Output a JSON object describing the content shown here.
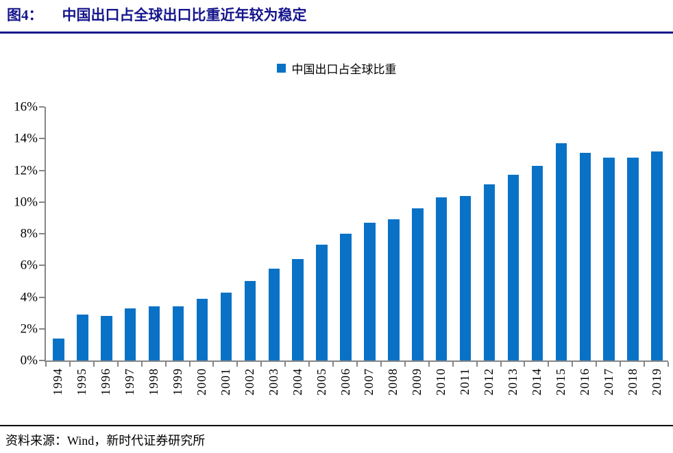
{
  "page": {
    "title_prefix": "图4：",
    "title_text": "中国出口占全球出口比重近年较为稳定",
    "source_text": "资料来源：Wind，新时代证券研究所"
  },
  "legend": {
    "label": "中国出口占全球比重"
  },
  "colors": {
    "bar": "#0A72C6",
    "axis": "#858585",
    "title": "#14148C",
    "title_rule": "#14148C",
    "source_rule": "#000000"
  },
  "chart_data": {
    "type": "bar",
    "title": "中国出口占全球比重",
    "categories": [
      "1994",
      "1995",
      "1996",
      "1997",
      "1998",
      "1999",
      "2000",
      "2001",
      "2002",
      "2003",
      "2004",
      "2005",
      "2006",
      "2007",
      "2008",
      "2009",
      "2010",
      "2011",
      "2012",
      "2013",
      "2014",
      "2015",
      "2016",
      "2017",
      "2018",
      "2019"
    ],
    "values": [
      1.4,
      2.9,
      2.8,
      3.3,
      3.4,
      3.4,
      3.9,
      4.3,
      5.0,
      5.8,
      6.4,
      7.3,
      8.0,
      8.7,
      8.9,
      9.6,
      10.3,
      10.4,
      11.1,
      11.7,
      12.3,
      13.7,
      13.1,
      12.8,
      12.8,
      13.2
    ],
    "unit": "%",
    "xlabel": "",
    "ylabel": "",
    "ylim": [
      0,
      16
    ],
    "ytick_step": 2,
    "ytick_labels": [
      "0%",
      "2%",
      "4%",
      "6%",
      "8%",
      "10%",
      "12%",
      "14%",
      "16%"
    ],
    "grid": false,
    "legend_entries": [
      "中国出口占全球比重"
    ],
    "legend_position": "top-center"
  }
}
